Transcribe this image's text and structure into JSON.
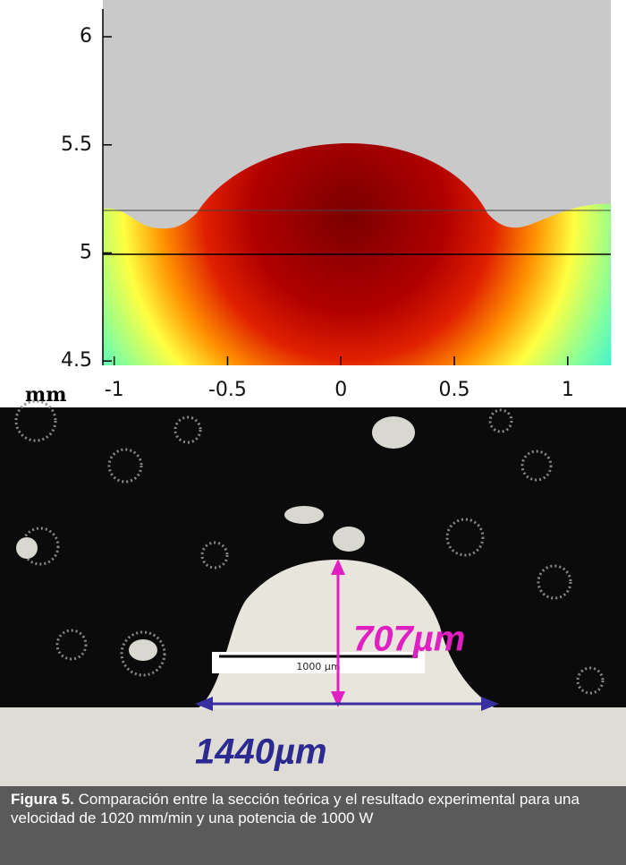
{
  "figure": {
    "plot": {
      "xlim": [
        -1.05,
        1.19
      ],
      "ylim": [
        4.48,
        6.17
      ],
      "xticks": [
        -1,
        -0.5,
        0,
        0.5,
        1
      ],
      "yticks": [
        4.5,
        5,
        5.5,
        6
      ],
      "unit": "mm"
    },
    "micrograph": {
      "scale_bar": "1000 µm",
      "height_label": "707µm",
      "width_label": "1440µm"
    },
    "caption": {
      "label": "Figura 5.",
      "text": "Comparación entre la sección teórica y el resultado experimental para una velocidad de 1020 mm/min y una potencia de 1000 W"
    }
  }
}
